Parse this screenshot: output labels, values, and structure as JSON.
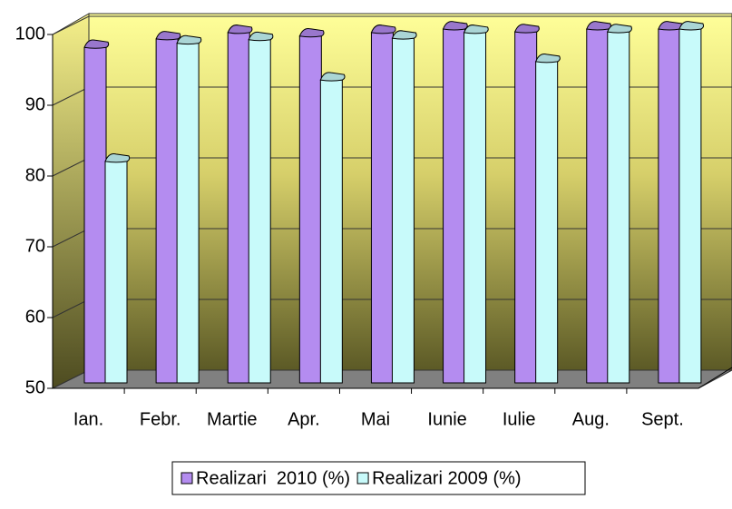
{
  "chart_data": {
    "type": "bar3d",
    "categories": [
      "Ian.",
      "Febr.",
      "Martie",
      "Apr.",
      "Mai",
      "Iunie",
      "Iulie",
      "Aug.",
      "Sept."
    ],
    "series": [
      {
        "name": "Realizari  2010 (%)",
        "color": "#b48cf0",
        "values": [
          97.4,
          98.6,
          99.5,
          99,
          99.5,
          100,
          99.6,
          100,
          100
        ]
      },
      {
        "name": "Realizari 2009 (%)",
        "color": "#c8fafa",
        "values": [
          81.3,
          98,
          98.5,
          92.8,
          98.7,
          99.5,
          95.4,
          99.6,
          100
        ]
      }
    ],
    "ylim": [
      50,
      100
    ],
    "yticks": [
      50,
      60,
      70,
      80,
      90,
      100
    ],
    "grid": true,
    "legend": "bottom"
  }
}
